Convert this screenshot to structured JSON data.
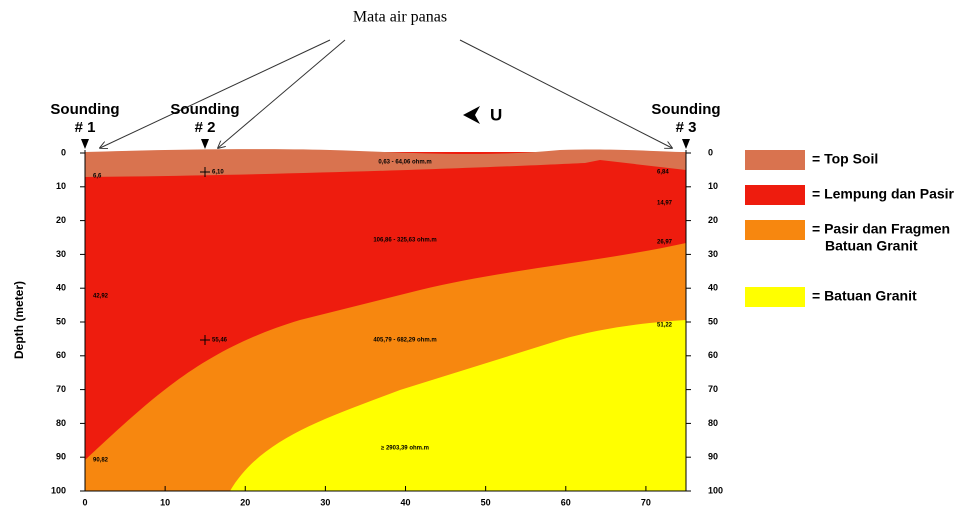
{
  "annotation": "Mata air panas",
  "north": "U",
  "soundings": [
    {
      "label": "Sounding",
      "number": "# 1"
    },
    {
      "label": "Sounding",
      "number": "# 2"
    },
    {
      "label": "Sounding",
      "number": "# 3"
    }
  ],
  "axis": {
    "y_label": "Depth (meter)",
    "y_ticks": [
      "0",
      "10",
      "20",
      "30",
      "40",
      "50",
      "60",
      "70",
      "80",
      "90",
      "100"
    ],
    "x_ticks": [
      "0",
      "10",
      "20",
      "30",
      "40",
      "50",
      "60",
      "70"
    ]
  },
  "layer_labels": [
    "0,63 - 64,06 ohm.m",
    "106,86 - 325,63 ohm.m",
    "405,79 - 682,29 ohm.m",
    "≥ 2903,39 ohm.m"
  ],
  "depth_labels": [
    "6,6",
    "6,10",
    "42,92",
    "55,46",
    "90,82",
    "6,84",
    "14,97",
    "26,97",
    "51,22"
  ],
  "legend": [
    {
      "label": "= Top Soil"
    },
    {
      "label": "= Lempung dan Pasir"
    },
    {
      "label": "= Pasir dan Fragmen",
      "label2": "Batuan Granit"
    },
    {
      "label": "= Batuan Granit"
    }
  ]
}
